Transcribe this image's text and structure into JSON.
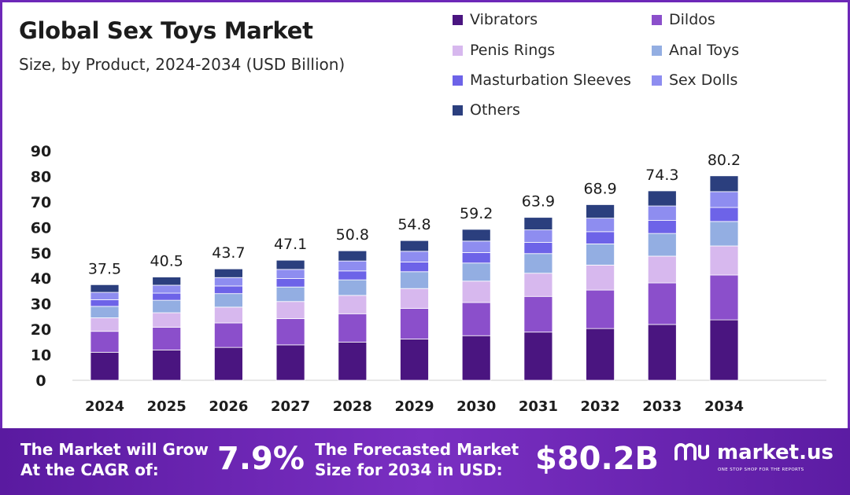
{
  "title": "Global Sex Toys Market",
  "subtitle": "Size, by Product, 2024-2034 (USD Billion)",
  "colors": {
    "frame": "#6d28b8",
    "Vibrators": "#4a1580",
    "Dildos": "#8b4fcb",
    "Penis Rings": "#d7b8ee",
    "Anal Toys": "#93aee2",
    "Masturbation Sleeves": "#6d63e8",
    "Sex Dolls": "#8e8df0",
    "Others": "#2b3f7e"
  },
  "chart_data": {
    "type": "bar",
    "stacked": true,
    "categories": [
      "2024",
      "2025",
      "2026",
      "2027",
      "2028",
      "2029",
      "2030",
      "2031",
      "2032",
      "2033",
      "2034"
    ],
    "totals": [
      37.5,
      40.5,
      43.7,
      47.1,
      50.8,
      54.8,
      59.2,
      63.9,
      68.9,
      74.3,
      80.2
    ],
    "total_labels": [
      "37.5",
      "40.5",
      "43.7",
      "47.1",
      "50.8",
      "54.8",
      "59.2",
      "63.9",
      "68.9",
      "74.3",
      "80.2"
    ],
    "series": [
      {
        "name": "Vibrators",
        "values": [
          11.0,
          11.9,
          12.9,
          13.9,
          15.0,
          16.2,
          17.5,
          18.9,
          20.3,
          21.9,
          23.7
        ]
      },
      {
        "name": "Dildos",
        "values": [
          8.2,
          8.9,
          9.6,
          10.3,
          11.1,
          12.0,
          13.0,
          14.0,
          15.1,
          16.3,
          17.6
        ]
      },
      {
        "name": "Penis Rings",
        "values": [
          5.3,
          5.7,
          6.2,
          6.7,
          7.2,
          7.8,
          8.4,
          9.1,
          9.8,
          10.5,
          11.4
        ]
      },
      {
        "name": "Anal Toys",
        "values": [
          4.5,
          4.9,
          5.3,
          5.7,
          6.1,
          6.6,
          7.1,
          7.7,
          8.3,
          8.9,
          9.6
        ]
      },
      {
        "name": "Masturbation Sleeves",
        "values": [
          2.6,
          2.8,
          3.0,
          3.3,
          3.5,
          3.8,
          4.1,
          4.4,
          4.8,
          5.1,
          5.5
        ]
      },
      {
        "name": "Sex Dolls",
        "values": [
          2.9,
          3.1,
          3.3,
          3.6,
          3.9,
          4.2,
          4.5,
          4.9,
          5.3,
          5.7,
          6.2
        ]
      },
      {
        "name": "Others",
        "values": [
          3.0,
          3.2,
          3.4,
          3.6,
          4.0,
          4.2,
          4.6,
          4.9,
          5.3,
          5.9,
          6.2
        ]
      }
    ],
    "yticks": [
      "90",
      "80",
      "70",
      "60",
      "50",
      "40",
      "30",
      "20",
      "10",
      "0"
    ],
    "ylim": [
      0,
      90
    ],
    "xlabel": "",
    "ylabel": "",
    "grid": false,
    "legend_position": "top-right"
  },
  "banner": {
    "cagr_text_line1": "The Market will Grow",
    "cagr_text_line2": "At the CAGR of:",
    "cagr_value": "7.9%",
    "forecast_text_line1": "The Forecasted Market",
    "forecast_text_line2": "Size for 2034 in USD:",
    "forecast_value": "$80.2B",
    "logo_text": "market.us",
    "logo_tagline": "ONE STOP SHOP FOR THE REPORTS"
  }
}
